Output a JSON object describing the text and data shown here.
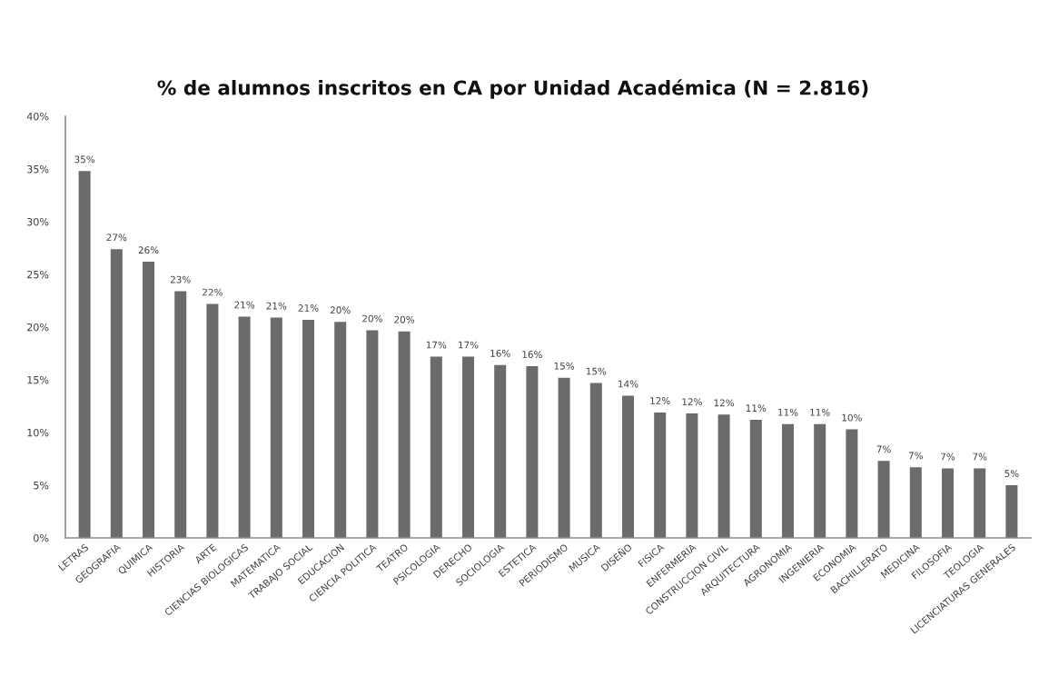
{
  "chart_data": {
    "type": "bar",
    "title": "% de alumnos inscritos en CA por Unidad Académica (N = 2.816)",
    "categories": [
      "LETRAS",
      "GEOGRAFIA",
      "QUIMICA",
      "HISTORIA",
      "ARTE",
      "CIENCIAS BIOLOGICAS",
      "MATEMATICA",
      "TRABAJO SOCIAL",
      "EDUCACION",
      "CIENCIA POLITICA",
      "TEATRO",
      "PSICOLOGIA",
      "DERECHO",
      "SOCIOLOGIA",
      "ESTETICA",
      "PERIODISMO",
      "MUSICA",
      "DISEÑO",
      "FISICA",
      "ENFERMERIA",
      "CONSTRUCCION CIVIL",
      "ARQUITECTURA",
      "AGRONOMIA",
      "INGENIERIA",
      "ECONOMIA",
      "BACHILLERATO",
      "MEDICINA",
      "FILOSOFIA",
      "TEOLOGIA",
      "LICENCIATURAS GENERALES"
    ],
    "values": [
      34.8,
      27.4,
      26.2,
      23.4,
      22.2,
      21.0,
      20.9,
      20.7,
      20.5,
      19.7,
      19.6,
      17.2,
      17.2,
      16.4,
      16.3,
      15.2,
      14.7,
      13.5,
      11.9,
      11.8,
      11.7,
      11.2,
      10.8,
      10.8,
      10.3,
      7.3,
      6.7,
      6.6,
      6.6,
      5.0
    ],
    "value_labels": [
      "35%",
      "27%",
      "26%",
      "23%",
      "22%",
      "21%",
      "21%",
      "21%",
      "20%",
      "20%",
      "20%",
      "17%",
      "17%",
      "16%",
      "16%",
      "15%",
      "15%",
      "14%",
      "12%",
      "12%",
      "12%",
      "11%",
      "11%",
      "11%",
      "10%",
      "7%",
      "7%",
      "7%",
      "7%",
      "5%"
    ],
    "color": "#6b6b6b",
    "ylim": [
      0,
      40
    ],
    "yticks": [
      {
        "value": 0,
        "label": "0%"
      },
      {
        "value": 5,
        "label": "5%"
      },
      {
        "value": 10,
        "label": "10%"
      },
      {
        "value": 15,
        "label": "15%"
      },
      {
        "value": 20,
        "label": "20%"
      },
      {
        "value": 25,
        "label": "25%"
      },
      {
        "value": 30,
        "label": "30%"
      },
      {
        "value": 35,
        "label": "35%"
      },
      {
        "value": 40,
        "label": "40%"
      }
    ]
  }
}
